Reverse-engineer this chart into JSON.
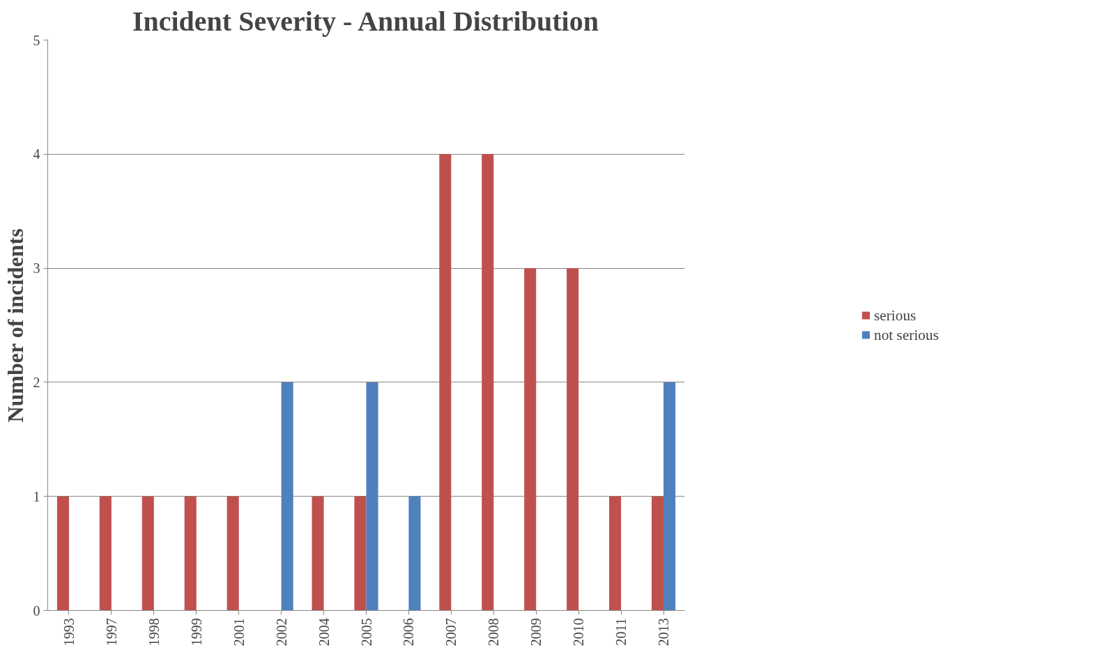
{
  "chart_data": {
    "type": "bar",
    "title": "Incident Severity - Annual Distribution",
    "ylabel": "Number of incidents",
    "categories": [
      "1993",
      "1997",
      "1998",
      "1999",
      "2001",
      "2002",
      "2004",
      "2005",
      "2006",
      "2007",
      "2008",
      "2009",
      "2010",
      "2011",
      "2013"
    ],
    "series": [
      {
        "name": "serious",
        "color": "#c0504d",
        "values": [
          1,
          1,
          1,
          1,
          1,
          0,
          1,
          1,
          0,
          4,
          4,
          3,
          3,
          1,
          1
        ]
      },
      {
        "name": "not serious",
        "color": "#4f81bd",
        "values": [
          0,
          0,
          0,
          0,
          0,
          2,
          0,
          2,
          1,
          0,
          0,
          0,
          0,
          0,
          2
        ]
      }
    ],
    "ylim": [
      0,
      5
    ],
    "yticks": [
      0,
      1,
      2,
      3,
      4,
      5
    ],
    "grid": "y",
    "legend": "right"
  }
}
